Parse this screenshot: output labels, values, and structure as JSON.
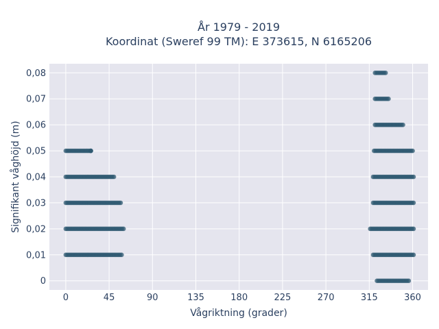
{
  "chart_data": {
    "type": "scatter",
    "title": "År 1979 - 2019",
    "subtitle": "Koordinat (Sweref 99 TM): E 373615, N 6165206",
    "xlabel": "Vågriktning (grader)",
    "ylabel": "Signifikant våghöjd (m)",
    "xlim": [
      -17,
      376
    ],
    "ylim": [
      -0.0035,
      0.0835
    ],
    "x_ticks": [
      0,
      45,
      90,
      135,
      180,
      225,
      270,
      315,
      360
    ],
    "x_tick_labels": [
      "0",
      "45",
      "90",
      "135",
      "180",
      "225",
      "270",
      "315",
      "360"
    ],
    "y_ticks": [
      0,
      0.01,
      0.02,
      0.03,
      0.04,
      0.05,
      0.06,
      0.07,
      0.08
    ],
    "y_tick_labels": [
      "0",
      "0,01",
      "0,02",
      "0,03",
      "0,04",
      "0,05",
      "0,06",
      "0,07",
      "0,08"
    ],
    "grid": true,
    "point_color": "#2e5870",
    "background_color": "#e5e5ee",
    "series": [
      {
        "clusters": [
          {
            "y": 0.05,
            "x_min": 0,
            "x_max": 26
          },
          {
            "y": 0.05,
            "x_min": 26,
            "x_max": 26
          },
          {
            "y": 0.04,
            "x_min": 0,
            "x_max": 50
          },
          {
            "y": 0.03,
            "x_min": 0,
            "x_max": 57
          },
          {
            "y": 0.02,
            "x_min": 0,
            "x_max": 60
          },
          {
            "y": 0.01,
            "x_min": 0,
            "x_max": 58
          },
          {
            "y": 0.08,
            "x_min": 321,
            "x_max": 332
          },
          {
            "y": 0.07,
            "x_min": 321,
            "x_max": 335
          },
          {
            "y": 0.06,
            "x_min": 321,
            "x_max": 350
          },
          {
            "y": 0.05,
            "x_min": 320,
            "x_max": 360
          },
          {
            "y": 0.04,
            "x_min": 319,
            "x_max": 361
          },
          {
            "y": 0.03,
            "x_min": 319,
            "x_max": 361
          },
          {
            "y": 0.02,
            "x_min": 316,
            "x_max": 361
          },
          {
            "y": 0.01,
            "x_min": 319,
            "x_max": 361
          },
          {
            "y": 0,
            "x_min": 323,
            "x_max": 356
          }
        ]
      }
    ]
  }
}
